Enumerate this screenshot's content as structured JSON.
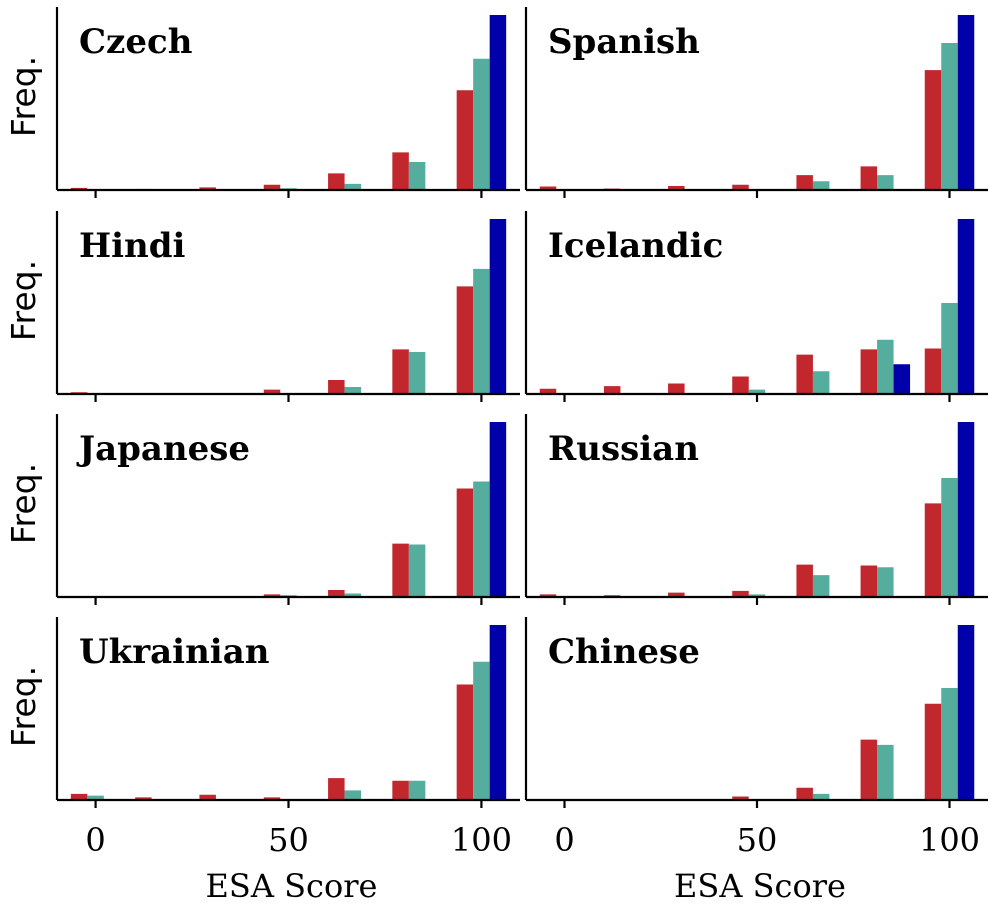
{
  "chart_data": {
    "type": "bar",
    "layout": "4x2 grid of histograms",
    "ylabel": "Freq.",
    "xlabel": "ESA Score",
    "xticks": [
      0,
      50,
      100
    ],
    "xlim": [
      -10,
      110
    ],
    "series_colors": [
      "#c1272d",
      "#55ad9d",
      "#0000a8"
    ],
    "bin_centers": [
      0,
      16.67,
      33.33,
      50,
      66.67,
      83.33,
      100
    ],
    "panels": [
      {
        "title": "Czech",
        "series": [
          {
            "values": [
              1.2,
              0.6,
              1.5,
              3,
              9.5,
              21.5,
              57
            ]
          },
          {
            "values": [
              0,
              0,
              0,
              1,
              3.5,
              16,
              75
            ]
          },
          {
            "values": [
              0,
              0,
              0,
              0,
              0,
              0,
              100
            ]
          }
        ]
      },
      {
        "title": "Spanish",
        "series": [
          {
            "values": [
              2,
              0.8,
              2.3,
              3,
              8.5,
              13.5,
              68.5
            ]
          },
          {
            "values": [
              0,
              0,
              0,
              0,
              5,
              8.5,
              84
            ]
          },
          {
            "values": [
              0,
              0,
              0,
              0,
              0,
              0,
              100
            ]
          }
        ]
      },
      {
        "title": "Hindi",
        "series": [
          {
            "values": [
              1,
              0,
              0.5,
              2.5,
              8,
              25.5,
              61.5
            ]
          },
          {
            "values": [
              0,
              0,
              0,
              0.5,
              4,
              24,
              71.5
            ]
          },
          {
            "values": [
              0,
              0,
              0,
              0,
              0,
              0,
              100
            ]
          }
        ]
      },
      {
        "title": "Icelandic",
        "series": [
          {
            "values": [
              3,
              4.5,
              6,
              10,
              22.5,
              25.5,
              26
            ]
          },
          {
            "values": [
              0,
              0,
              0,
              2.5,
              13,
              31,
              52
            ]
          },
          {
            "values": [
              0,
              0,
              0,
              0,
              0,
              17,
              100
            ]
          }
        ]
      },
      {
        "title": "Japanese",
        "series": [
          {
            "values": [
              0,
              0,
              0,
              1.5,
              4,
              30.5,
              62
            ]
          },
          {
            "values": [
              0,
              0,
              0,
              1,
              2,
              30,
              66
            ]
          },
          {
            "values": [
              0,
              0,
              0,
              0,
              0,
              0,
              100
            ]
          }
        ]
      },
      {
        "title": "Russian",
        "series": [
          {
            "values": [
              1.5,
              1,
              2.5,
              3.5,
              18.5,
              18,
              53.5
            ]
          },
          {
            "values": [
              0,
              0,
              0,
              1.5,
              12.5,
              17,
              68
            ]
          },
          {
            "values": [
              0,
              0,
              0,
              0,
              0,
              0,
              100
            ]
          }
        ]
      },
      {
        "title": "Ukrainian",
        "series": [
          {
            "values": [
              3.5,
              1.5,
              3,
              1.5,
              12.5,
              11,
              66
            ]
          },
          {
            "values": [
              2.5,
              0,
              0,
              0.5,
              5.5,
              11,
              79
            ]
          },
          {
            "values": [
              0,
              0,
              0,
              0,
              0,
              0,
              100
            ]
          }
        ]
      },
      {
        "title": "Chinese",
        "series": [
          {
            "values": [
              0,
              0,
              0,
              2,
              7,
              34.5,
              55
            ]
          },
          {
            "values": [
              0,
              0,
              0,
              0,
              3.5,
              31.5,
              64
            ]
          },
          {
            "values": [
              0,
              0,
              0,
              0,
              0,
              0,
              100
            ]
          }
        ]
      }
    ]
  }
}
